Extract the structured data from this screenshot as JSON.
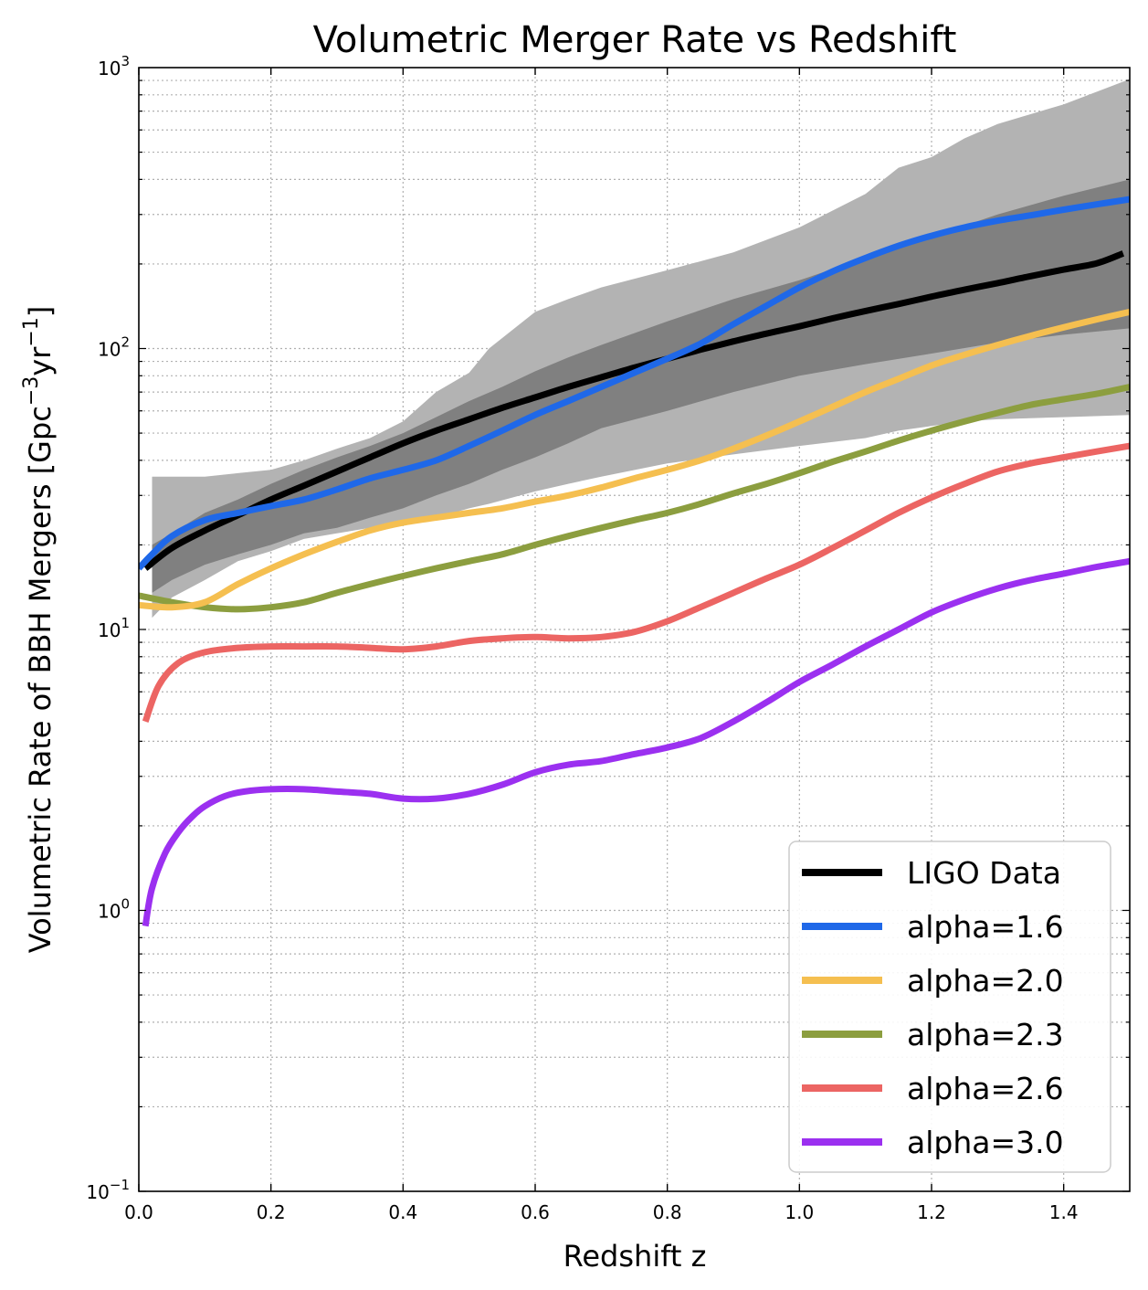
{
  "chart_data": {
    "type": "line",
    "title": "Volumetric Merger Rate vs Redshift",
    "xlabel": "Redshift z",
    "ylabel_main": "Volumetric Rate of BBH Mergers [Gpc",
    "ylabel_sup1": "−3",
    "ylabel_mid": "yr",
    "ylabel_sup2": "−1",
    "ylabel_end": "]",
    "xlim": [
      0,
      1.5
    ],
    "ylim": [
      0.1,
      1000
    ],
    "yscale": "log",
    "grid": true,
    "legend_position": "lower-right",
    "x_ticks": [
      "0.0",
      "0.2",
      "0.4",
      "0.6",
      "0.8",
      "1.0",
      "1.2",
      "1.4"
    ],
    "x_tick_values": [
      0,
      0.2,
      0.4,
      0.6,
      0.8,
      1.0,
      1.2,
      1.4
    ],
    "y_ticks": [
      {
        "value": 0.1,
        "base": "10",
        "exp": "−1"
      },
      {
        "value": 1,
        "base": "10",
        "exp": "0"
      },
      {
        "value": 10,
        "base": "10",
        "exp": "1"
      },
      {
        "value": 100,
        "base": "10",
        "exp": "2"
      },
      {
        "value": 1000,
        "base": "10",
        "exp": "3"
      }
    ],
    "bands": [
      {
        "color": "#b3b3b3",
        "x": [
          0.02,
          0.05,
          0.1,
          0.15,
          0.2,
          0.25,
          0.3,
          0.35,
          0.4,
          0.45,
          0.5,
          0.53,
          0.6,
          0.65,
          0.7,
          0.8,
          0.9,
          1.0,
          1.1,
          1.15,
          1.2,
          1.25,
          1.3,
          1.4,
          1.5
        ],
        "upper": [
          35,
          35,
          35,
          36,
          37,
          40,
          44,
          48,
          55,
          70,
          82,
          100,
          135,
          150,
          165,
          190,
          220,
          270,
          355,
          440,
          480,
          560,
          630,
          740,
          910
        ],
        "lower": [
          11,
          13,
          15,
          17.5,
          19,
          21,
          22,
          23,
          24,
          25,
          27,
          28,
          31,
          33,
          35,
          39,
          42,
          45,
          48,
          51,
          53,
          55,
          56,
          57,
          58
        ]
      },
      {
        "color": "#808080",
        "x": [
          0.02,
          0.05,
          0.1,
          0.15,
          0.2,
          0.25,
          0.3,
          0.35,
          0.4,
          0.45,
          0.5,
          0.55,
          0.6,
          0.65,
          0.7,
          0.8,
          0.9,
          1.0,
          1.1,
          1.2,
          1.3,
          1.4,
          1.5
        ],
        "upper": [
          20,
          22,
          26,
          29,
          33,
          37,
          41,
          45,
          50,
          57,
          65,
          73,
          83,
          93,
          103,
          125,
          150,
          175,
          210,
          250,
          300,
          350,
          400
        ],
        "lower": [
          13.5,
          15,
          17,
          18.5,
          20,
          22,
          23,
          25,
          27,
          30,
          33,
          37,
          41,
          46,
          52,
          60,
          70,
          80,
          88,
          96,
          105,
          112,
          118
        ]
      }
    ],
    "series": [
      {
        "name": "LIGO Data",
        "color": "#000000",
        "x": [
          0.01,
          0.05,
          0.1,
          0.15,
          0.2,
          0.25,
          0.3,
          0.35,
          0.4,
          0.45,
          0.5,
          0.55,
          0.6,
          0.65,
          0.7,
          0.75,
          0.8,
          0.85,
          0.9,
          0.95,
          1.0,
          1.05,
          1.1,
          1.15,
          1.2,
          1.25,
          1.3,
          1.35,
          1.4,
          1.45,
          1.49
        ],
        "y": [
          16.5,
          19.5,
          22.5,
          25.5,
          29,
          32.5,
          36.5,
          41,
          46,
          51,
          56,
          61.5,
          67,
          73,
          79,
          85.5,
          92,
          99,
          106,
          113,
          120,
          128,
          136,
          144,
          153,
          162,
          171,
          181,
          191,
          201,
          218
        ]
      },
      {
        "name": "alpha=1.6",
        "color": "#1f68e8",
        "x": [
          0.0,
          0.02,
          0.05,
          0.1,
          0.15,
          0.2,
          0.25,
          0.3,
          0.35,
          0.4,
          0.45,
          0.5,
          0.55,
          0.6,
          0.65,
          0.7,
          0.75,
          0.8,
          0.85,
          0.9,
          0.95,
          1.0,
          1.05,
          1.1,
          1.15,
          1.2,
          1.25,
          1.3,
          1.35,
          1.4,
          1.45,
          1.5
        ],
        "y": [
          16.5,
          18.5,
          21.5,
          24.5,
          26,
          27.5,
          29,
          31.5,
          34.5,
          37,
          40,
          45,
          51,
          58,
          65,
          73,
          82,
          92,
          104,
          122,
          142,
          165,
          188,
          210,
          232,
          252,
          270,
          285,
          298,
          312,
          326,
          340
        ]
      },
      {
        "name": "alpha=2.0",
        "color": "#f5bf50",
        "x": [
          0.0,
          0.05,
          0.1,
          0.15,
          0.2,
          0.25,
          0.3,
          0.35,
          0.4,
          0.45,
          0.5,
          0.55,
          0.6,
          0.65,
          0.7,
          0.75,
          0.8,
          0.85,
          0.9,
          0.95,
          1.0,
          1.05,
          1.1,
          1.15,
          1.2,
          1.25,
          1.3,
          1.35,
          1.4,
          1.45,
          1.5
        ],
        "y": [
          12.2,
          12,
          12.5,
          14.5,
          16.5,
          18.5,
          20.5,
          22.5,
          24,
          25,
          26,
          27,
          28.5,
          30,
          32,
          34.5,
          37,
          40,
          44,
          49,
          55,
          62,
          70,
          78,
          87,
          95,
          103,
          111,
          119,
          127,
          135
        ]
      },
      {
        "name": "alpha=2.3",
        "color": "#8c9e3f",
        "x": [
          0.0,
          0.05,
          0.1,
          0.15,
          0.2,
          0.25,
          0.3,
          0.35,
          0.4,
          0.45,
          0.5,
          0.55,
          0.6,
          0.65,
          0.7,
          0.75,
          0.8,
          0.85,
          0.9,
          0.95,
          1.0,
          1.05,
          1.1,
          1.15,
          1.2,
          1.25,
          1.3,
          1.35,
          1.4,
          1.45,
          1.5
        ],
        "y": [
          13.2,
          12.5,
          12,
          11.8,
          12,
          12.5,
          13.5,
          14.5,
          15.5,
          16.5,
          17.5,
          18.5,
          20,
          21.5,
          23,
          24.5,
          26,
          28,
          30.5,
          33,
          36,
          39.5,
          43,
          47,
          51,
          55,
          59,
          63,
          66,
          69,
          73
        ]
      },
      {
        "name": "alpha=2.6",
        "color": "#ec6563",
        "x": [
          0.01,
          0.03,
          0.06,
          0.1,
          0.15,
          0.2,
          0.25,
          0.3,
          0.35,
          0.4,
          0.45,
          0.5,
          0.55,
          0.6,
          0.65,
          0.7,
          0.75,
          0.8,
          0.85,
          0.9,
          0.95,
          1.0,
          1.05,
          1.1,
          1.15,
          1.2,
          1.25,
          1.3,
          1.35,
          1.4,
          1.45,
          1.5
        ],
        "y": [
          4.7,
          6.3,
          7.6,
          8.3,
          8.6,
          8.7,
          8.7,
          8.7,
          8.6,
          8.5,
          8.7,
          9.1,
          9.3,
          9.4,
          9.3,
          9.4,
          9.8,
          10.7,
          12,
          13.5,
          15.2,
          17,
          19.5,
          22.5,
          26,
          29.5,
          33,
          36.5,
          39,
          41,
          43,
          45
        ]
      },
      {
        "name": "alpha=3.0",
        "color": "#9b30f0",
        "x": [
          0.01,
          0.02,
          0.04,
          0.06,
          0.08,
          0.1,
          0.13,
          0.16,
          0.2,
          0.25,
          0.3,
          0.35,
          0.4,
          0.45,
          0.5,
          0.55,
          0.6,
          0.65,
          0.7,
          0.75,
          0.8,
          0.85,
          0.9,
          0.95,
          1.0,
          1.05,
          1.1,
          1.15,
          1.2,
          1.25,
          1.3,
          1.35,
          1.4,
          1.45,
          1.5
        ],
        "y": [
          0.88,
          1.2,
          1.6,
          1.9,
          2.15,
          2.35,
          2.55,
          2.65,
          2.7,
          2.7,
          2.65,
          2.6,
          2.5,
          2.5,
          2.6,
          2.8,
          3.1,
          3.3,
          3.4,
          3.6,
          3.8,
          4.1,
          4.7,
          5.5,
          6.5,
          7.5,
          8.7,
          10,
          11.5,
          12.8,
          14,
          15,
          15.8,
          16.7,
          17.5
        ]
      }
    ]
  }
}
